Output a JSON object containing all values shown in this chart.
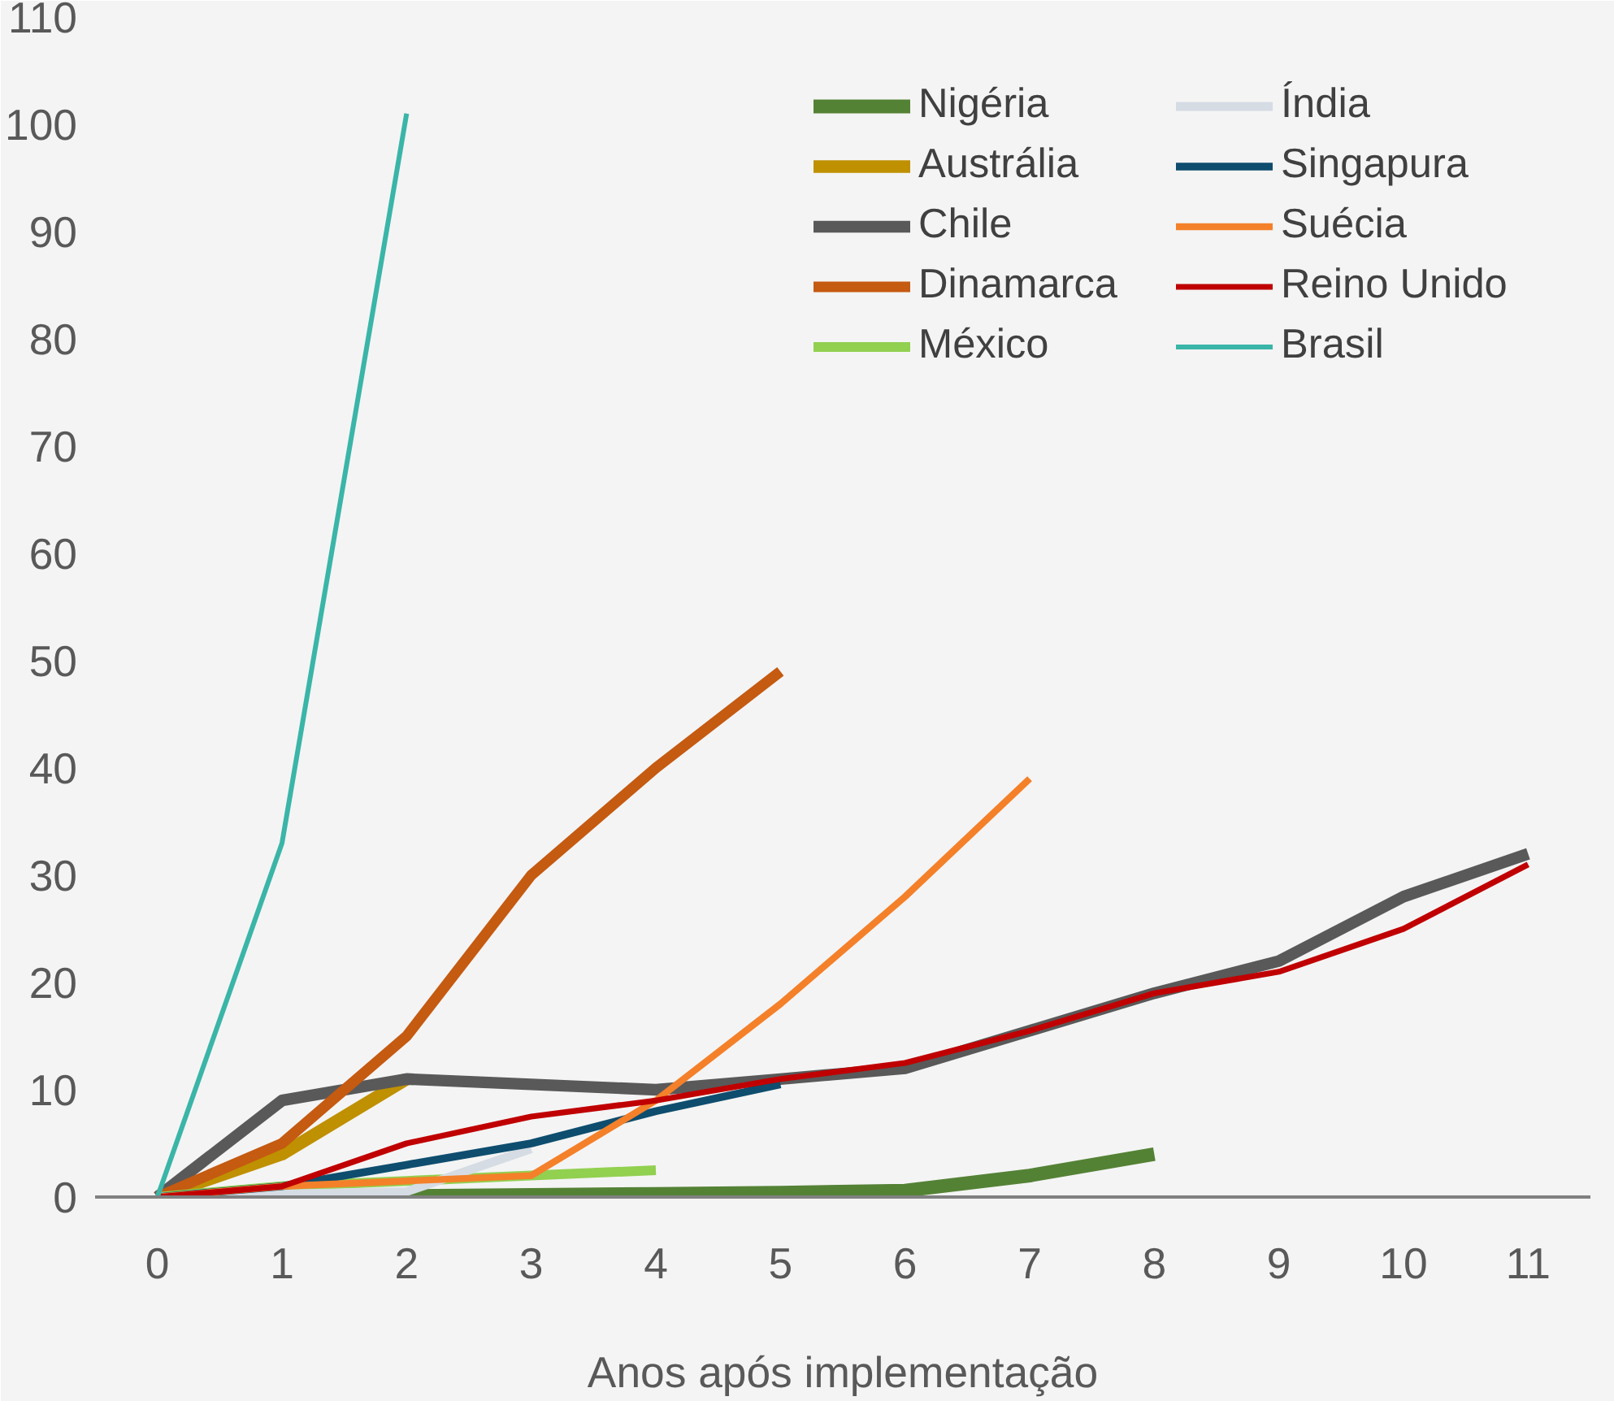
{
  "chart_data": {
    "type": "line",
    "xlabel": "Anos após implementação",
    "xlim": [
      -0.5,
      11.5
    ],
    "ylim": [
      0,
      110
    ],
    "xticks": [
      0,
      1,
      2,
      3,
      4,
      5,
      6,
      7,
      8,
      9,
      10,
      11
    ],
    "yticks": [
      0,
      10,
      20,
      30,
      40,
      50,
      60,
      70,
      80,
      90,
      100,
      110
    ],
    "grid": false,
    "legend": "top right",
    "marker": "none",
    "line_style": "solid",
    "series": [
      {
        "name": "Nigéria",
        "color": "#548235",
        "x": [
          0,
          1,
          2,
          3,
          4,
          5,
          6,
          7,
          8
        ],
        "values": [
          0,
          0,
          0.1,
          0.2,
          0.3,
          0.4,
          0.6,
          2,
          4
        ]
      },
      {
        "name": "Austrália",
        "color": "#bf9000",
        "x": [
          0,
          1,
          2
        ],
        "values": [
          0,
          4,
          11
        ]
      },
      {
        "name": "Chile",
        "color": "#595959",
        "x": [
          0,
          1,
          2,
          3,
          4,
          5,
          6,
          7,
          8,
          9,
          10,
          11
        ],
        "values": [
          0,
          9,
          11,
          10.5,
          10,
          11,
          12,
          15.5,
          19,
          22,
          28,
          32
        ]
      },
      {
        "name": "Dinamarca",
        "color": "#c55a11",
        "x": [
          0,
          1,
          2,
          3,
          4,
          5
        ],
        "values": [
          0,
          5,
          15,
          30,
          40,
          49
        ]
      },
      {
        "name": "México",
        "color": "#92d050",
        "x": [
          0,
          1,
          2,
          3,
          4
        ],
        "values": [
          0,
          1,
          1.5,
          2,
          2.5
        ]
      },
      {
        "name": "Índia",
        "color": "#d6dce4",
        "x": [
          0,
          1,
          2,
          3
        ],
        "values": [
          0,
          0.3,
          0.5,
          4.5
        ]
      },
      {
        "name": "Singapura",
        "color": "#0e4d6e",
        "x": [
          0,
          1,
          2,
          3,
          4,
          5
        ],
        "values": [
          0,
          1,
          3,
          5,
          8,
          10.5
        ]
      },
      {
        "name": "Suécia",
        "color": "#f4802a",
        "x": [
          0,
          1,
          2,
          3,
          4,
          5,
          6,
          7
        ],
        "values": [
          0,
          1,
          1.5,
          2,
          9,
          18,
          28,
          39
        ]
      },
      {
        "name": "Reino Unido",
        "color": "#c00000",
        "x": [
          0,
          1,
          2,
          3,
          4,
          5,
          6,
          7,
          8,
          9,
          10,
          11
        ],
        "values": [
          0,
          1,
          5,
          7.5,
          9,
          11,
          12.5,
          15.5,
          19,
          21,
          25,
          31
        ]
      },
      {
        "name": "Brasil",
        "color": "#3ab5a8",
        "x": [
          0,
          1,
          2
        ],
        "values": [
          0,
          33,
          101
        ]
      }
    ]
  }
}
